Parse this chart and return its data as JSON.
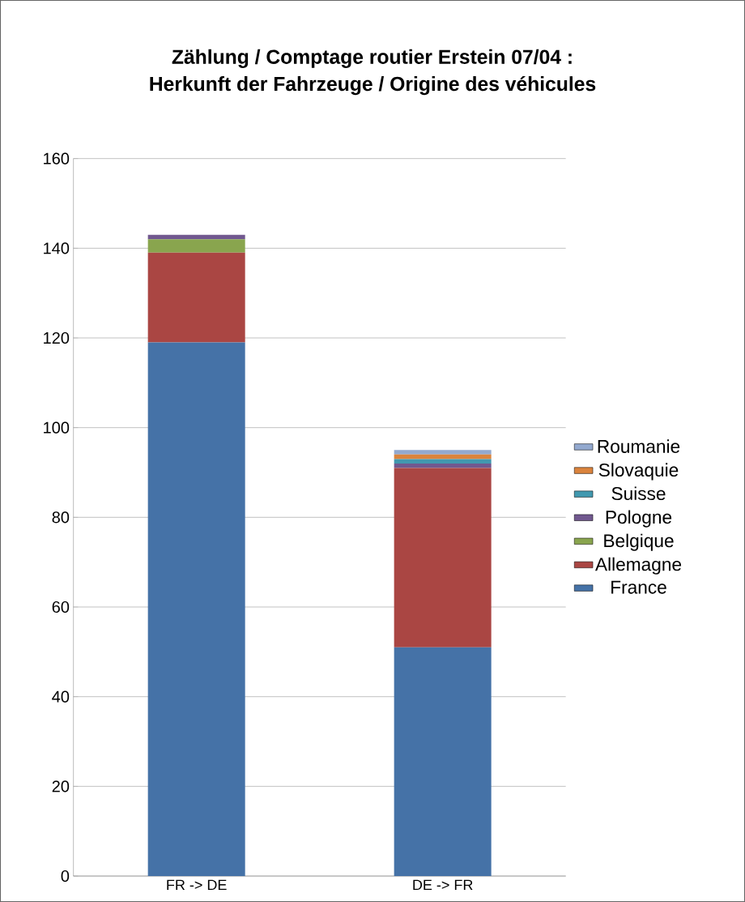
{
  "chart_data": {
    "type": "bar",
    "title": "Zählung / Comptage routier Erstein 07/04 :\nHerkunft der Fahrzeuge / Origine des véhicules",
    "categories": [
      "FR -> DE",
      "DE -> FR"
    ],
    "stacked": true,
    "grid": "y",
    "legend": "right",
    "ylim": [
      0,
      160
    ],
    "yticks": [
      0,
      20,
      40,
      60,
      80,
      100,
      120,
      140,
      160
    ],
    "series": [
      {
        "name": "France",
        "color": "#4572a7",
        "values": [
          119,
          51
        ]
      },
      {
        "name": "Allemagne",
        "color": "#aa4643",
        "values": [
          20,
          40
        ]
      },
      {
        "name": "Belgique",
        "color": "#89a54e",
        "values": [
          3,
          0
        ]
      },
      {
        "name": "Pologne",
        "color": "#71588f",
        "values": [
          1,
          1
        ]
      },
      {
        "name": "Suisse",
        "color": "#4198af",
        "values": [
          0,
          1
        ]
      },
      {
        "name": "Slovaquie",
        "color": "#db843d",
        "values": [
          0,
          1
        ]
      },
      {
        "name": "Roumanie",
        "color": "#93a9cf",
        "values": [
          0,
          1
        ]
      }
    ]
  }
}
